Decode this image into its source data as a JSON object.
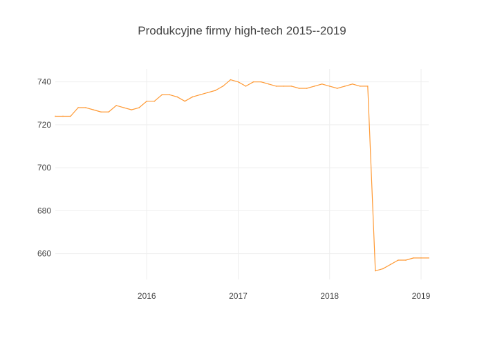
{
  "chart_data": {
    "type": "line",
    "title": "Produkcyjne firmy high-tech 2015--2019",
    "xlabel": "",
    "ylabel": "",
    "grid": true,
    "legend": "none",
    "x_ticks": [
      "2016",
      "2017",
      "2018",
      "2019"
    ],
    "y_ticks": [
      "660",
      "680",
      "700",
      "720",
      "740"
    ],
    "ylim": [
      648,
      746
    ],
    "xlim": [
      "2015-01",
      "2019-02"
    ],
    "series": [
      {
        "color": "#ff9933",
        "x": [
          "2015-01",
          "2015-02",
          "2015-03",
          "2015-04",
          "2015-05",
          "2015-06",
          "2015-07",
          "2015-08",
          "2015-09",
          "2015-10",
          "2015-11",
          "2015-12",
          "2016-01",
          "2016-02",
          "2016-03",
          "2016-04",
          "2016-05",
          "2016-06",
          "2016-07",
          "2016-08",
          "2016-09",
          "2016-10",
          "2016-11",
          "2016-12",
          "2017-01",
          "2017-02",
          "2017-03",
          "2017-04",
          "2017-05",
          "2017-06",
          "2017-07",
          "2017-08",
          "2017-09",
          "2017-10",
          "2017-11",
          "2017-12",
          "2018-01",
          "2018-02",
          "2018-03",
          "2018-04",
          "2018-05",
          "2018-06",
          "2018-07",
          "2018-08",
          "2018-09",
          "2018-10",
          "2018-11",
          "2018-12",
          "2019-01",
          "2019-02"
        ],
        "values": [
          724,
          724,
          724,
          728,
          728,
          727,
          726,
          726,
          729,
          728,
          727,
          728,
          731,
          731,
          734,
          734,
          733,
          731,
          733,
          734,
          735,
          736,
          738,
          741,
          740,
          738,
          740,
          740,
          739,
          738,
          738,
          738,
          737,
          737,
          738,
          739,
          738,
          737,
          738,
          739,
          738,
          738,
          652,
          653,
          655,
          657,
          657,
          658,
          658,
          658
        ]
      }
    ]
  },
  "colors": {
    "background": "#ffffff",
    "grid": "#eeeeee",
    "text": "#444444"
  }
}
